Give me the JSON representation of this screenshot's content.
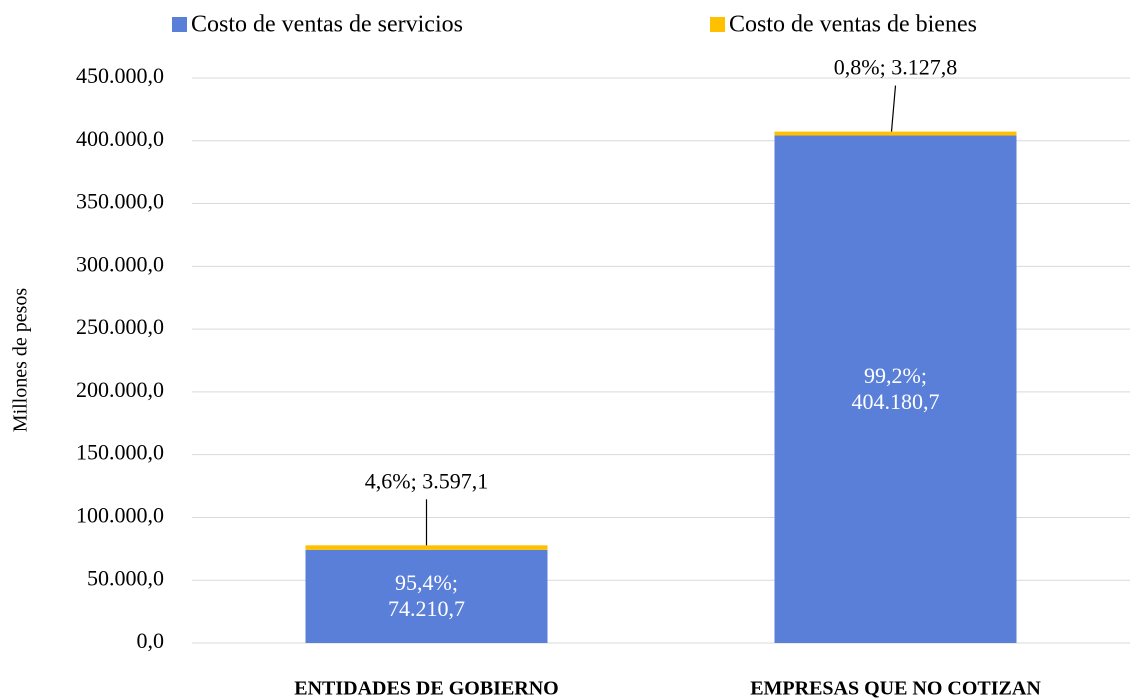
{
  "chart_data": {
    "type": "stacked_bar",
    "y_label": "Millones  de pesos",
    "categories": [
      "ENTIDADES DE GOBIERNO",
      "EMPRESAS QUE NO COTIZAN"
    ],
    "series": [
      {
        "name": "Costo de ventas de servicios",
        "color": "#5a7fd8",
        "values": [
          74210.7,
          404180.7
        ],
        "value_labels": [
          "95,4%; 74.210,7",
          "99,2%; 404.180,7"
        ]
      },
      {
        "name": "Costo de ventas de bienes",
        "color": "#ffc000",
        "values": [
          3597.1,
          3127.8
        ],
        "value_labels": [
          "4,6%; 3.597,1",
          "0,8%; 3.127,8"
        ]
      }
    ],
    "ylim": [
      0,
      450000
    ],
    "yticks": [
      {
        "value": 0,
        "label": "0,0"
      },
      {
        "value": 50000,
        "label": "50.000,0"
      },
      {
        "value": 100000,
        "label": "100.000,0"
      },
      {
        "value": 150000,
        "label": "150.000,0"
      },
      {
        "value": 200000,
        "label": "200.000,0"
      },
      {
        "value": 250000,
        "label": "250.000,0"
      },
      {
        "value": 300000,
        "label": "300.000,0"
      },
      {
        "value": 350000,
        "label": "350.000,0"
      },
      {
        "value": 400000,
        "label": "400.000,0"
      },
      {
        "value": 450000,
        "label": "450.000,0"
      }
    ],
    "grid": true,
    "legend": "top"
  }
}
